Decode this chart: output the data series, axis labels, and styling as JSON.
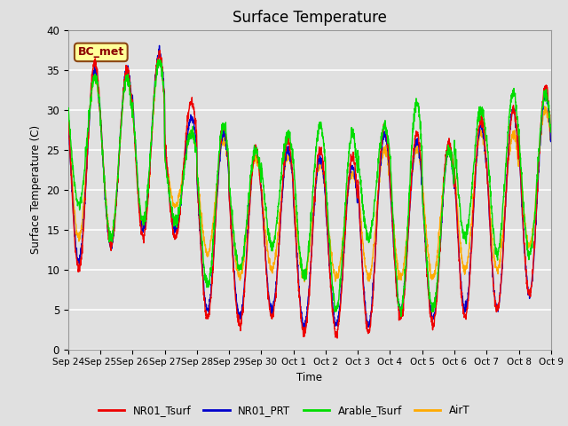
{
  "title": "Surface Temperature",
  "ylabel": "Surface Temperature (C)",
  "xlabel": "Time",
  "ylim": [
    0,
    40
  ],
  "plot_bg_color": "#e0e0e0",
  "annotation_text": "BC_met",
  "annotation_bg": "#ffff99",
  "annotation_border": "#8b4513",
  "annotation_text_color": "#8b0000",
  "series": {
    "NR01_Tsurf": {
      "color": "#ee0000",
      "lw": 1.0
    },
    "NR01_PRT": {
      "color": "#0000cc",
      "lw": 1.0
    },
    "Arable_Tsurf": {
      "color": "#00dd00",
      "lw": 1.0
    },
    "AirT": {
      "color": "#ffaa00",
      "lw": 1.0
    }
  },
  "xtick_labels": [
    "Sep 24",
    "Sep 25",
    "Sep 26",
    "Sep 27",
    "Sep 28",
    "Sep 29",
    "Sep 30",
    "Oct 1",
    "Oct 2",
    "Oct 3",
    "Oct 4",
    "Oct 5",
    "Oct 6",
    "Oct 7",
    "Oct 8",
    "Oct 9"
  ],
  "ytick_labels": [
    0,
    5,
    10,
    15,
    20,
    25,
    30,
    35,
    40
  ],
  "n_days": 15,
  "pts_per_day": 144
}
